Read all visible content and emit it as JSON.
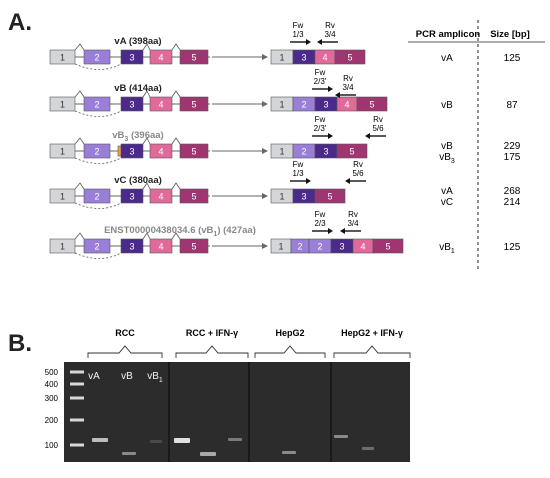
{
  "panel_a": {
    "label": "A.",
    "isoforms": [
      {
        "name": "vA (398aa)",
        "gray": false,
        "exons": [
          "1",
          "2",
          "",
          "3",
          "4",
          "5"
        ],
        "fw": "Fw",
        "fw_sub": "1/3",
        "rv": "Rv",
        "rv_sub": "3/4",
        "rv_dir": "left",
        "mrna": [
          "1",
          "3",
          "4",
          "5"
        ],
        "amplicons": [
          "vA"
        ],
        "sizes": [
          "125"
        ]
      },
      {
        "name": "vB (414aa)",
        "gray": false,
        "exons": [
          "1",
          "2",
          "",
          "3",
          "4",
          "5"
        ],
        "fw": "Fw",
        "fw_sub": "2/3'",
        "rv": "Rv",
        "rv_sub": "3/4",
        "rv_dir": "left",
        "mrna": [
          "1",
          "2",
          "3",
          "4",
          "5"
        ],
        "amplicons": [
          "vB"
        ],
        "sizes": [
          "87"
        ]
      },
      {
        "name": "vB",
        "name_sub": "3",
        "name_rest": " (396aa)",
        "gray": true,
        "exons": [
          "1",
          "2",
          "",
          "3",
          "4",
          "5"
        ],
        "fw": "Fw",
        "fw_sub": "2/3'",
        "rv": "Rv",
        "rv_sub": "5/6",
        "rv_dir": "left",
        "mrna": [
          "1",
          "2",
          "3",
          "5"
        ],
        "amplicons": [
          "vB",
          "vB3"
        ],
        "sizes": [
          "229",
          "175"
        ]
      },
      {
        "name": "vC (380aa)",
        "gray": false,
        "exons": [
          "1",
          "2",
          "",
          "3",
          "4",
          "5"
        ],
        "fw": "Fw",
        "fw_sub": "1/3",
        "rv": "Rv",
        "rv_sub": "5/6",
        "rv_dir": "left",
        "mrna": [
          "1",
          "3",
          "5"
        ],
        "amplicons": [
          "vA",
          "vC"
        ],
        "sizes": [
          "268",
          "214"
        ]
      },
      {
        "name": "ENST00000438034.6 (vB",
        "name_sub": "1",
        "name_rest": ") (427aa)",
        "gray": true,
        "exons": [
          "1",
          "2",
          "",
          "3",
          "4",
          "5"
        ],
        "fw": "Fw",
        "fw_sub": "2/3",
        "rv": "Rv",
        "rv_sub": "3/4",
        "rv_dir": "left",
        "mrna": [
          "1",
          "2",
          "2",
          "3",
          "4",
          "5"
        ],
        "amplicons": [
          "vB1"
        ],
        "sizes": [
          "125"
        ]
      }
    ],
    "table_header_amplicon": "PCR amplicon",
    "table_header_size": "Size [bp]",
    "amplicon_vB3_main": "vB",
    "amplicon_vB3_sub": "3",
    "amplicon_vB1_main": "vB",
    "amplicon_vB1_sub": "1",
    "colors": {
      "exon1": "#d3d5d8",
      "exon2": "#9a7fd8",
      "exon3": "#4b2a8c",
      "exon4": "#e06b9a",
      "exon5": "#a03671",
      "orange": "#f0a050",
      "line": "#666666"
    }
  },
  "panel_b": {
    "label": "B.",
    "groups": [
      "RCC",
      "RCC + IFN-γ",
      "HepG2",
      "HepG2 + IFN-γ"
    ],
    "ladder": [
      "500",
      "400",
      "300",
      "200",
      "100"
    ],
    "lane_labels": [
      "vA",
      "vB",
      "vB",
      "1"
    ]
  }
}
